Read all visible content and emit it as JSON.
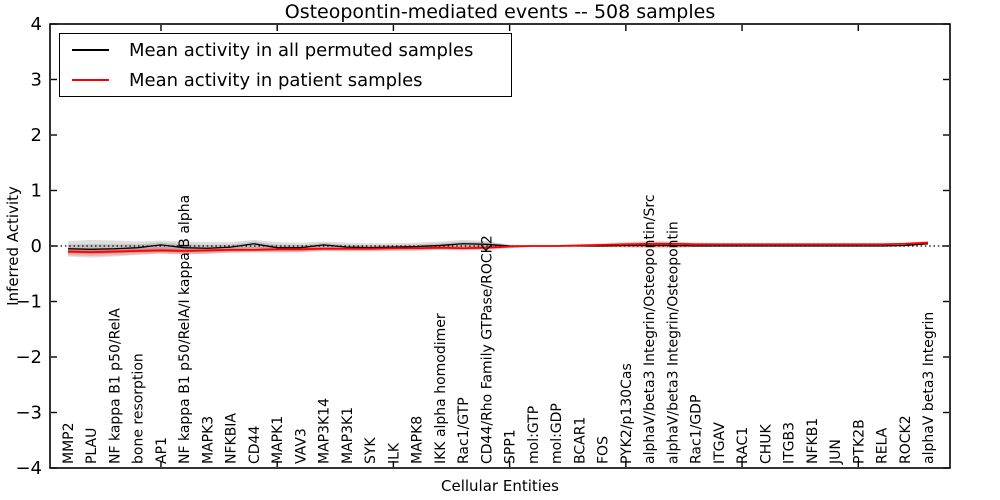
{
  "chart_data": {
    "type": "line",
    "title": "Osteopontin-mediated events -- 508 samples",
    "xlabel": "Cellular Entities",
    "ylabel": "Inferred Activity",
    "ylim": [
      -4,
      4
    ],
    "yticks": [
      4,
      3,
      2,
      1,
      0,
      -1,
      -2,
      -3,
      -4
    ],
    "grid": false,
    "legend_position": "upper left",
    "zero_line_style": "dotted",
    "axis_color": "#000000",
    "background_color": "#ffffff",
    "categories": [
      "MMP2",
      "PLAU",
      "NF kappa B1 p50/RelA",
      "bone resorption",
      "AP1",
      "NF kappa B1 p50/RelA/I kappa B alpha",
      "MAPK3",
      "NFKBIA",
      "CD44",
      "MAPK1",
      "VAV3",
      "MAP3K14",
      "MAP3K1",
      "SYK",
      "ILK",
      "MAPK8",
      "IKK alpha homodimer",
      "Rac1/GTP",
      "CD44/Rho Family GTPase/ROCK2",
      "SPP1",
      "mol:GTP",
      "mol:GDP",
      "BCAR1",
      "FOS",
      "PYK2/p130Cas",
      "alphaV/beta3 Integrin/Osteopontin/Src",
      "alphaV/beta3 Integrin/Osteopontin",
      "Rac1/GDP",
      "ITGAV",
      "RAC1",
      "CHUK",
      "ITGB3",
      "NFKB1",
      "JUN",
      "PTK2B",
      "RELA",
      "ROCK2",
      "alphaV beta3 Integrin"
    ],
    "series": [
      {
        "name": "Mean activity in all permuted samples",
        "color": "#000000",
        "line_width": 1.3,
        "band_color": "rgba(0,0,0,0.13)",
        "values": [
          -0.05,
          -0.06,
          -0.05,
          -0.03,
          0.02,
          -0.03,
          -0.04,
          -0.02,
          0.04,
          -0.03,
          -0.03,
          0.02,
          -0.02,
          -0.03,
          -0.02,
          -0.01,
          0.01,
          0.04,
          0.03,
          0.0,
          0.0,
          0.0,
          0.0,
          0.0,
          0.01,
          0.01,
          0.01,
          0.0,
          0.0,
          0.0,
          0.0,
          0.0,
          0.0,
          0.0,
          0.0,
          0.0,
          0.01,
          0.04
        ],
        "band_upper": [
          0.09,
          0.11,
          0.1,
          0.08,
          0.1,
          0.08,
          0.07,
          0.07,
          0.11,
          0.07,
          0.06,
          0.08,
          0.06,
          0.05,
          0.05,
          0.06,
          0.08,
          0.11,
          0.09,
          0.03,
          0.01,
          0.01,
          0.01,
          0.01,
          0.02,
          0.03,
          0.02,
          0.01,
          0.01,
          0.01,
          0.01,
          0.01,
          0.01,
          0.01,
          0.01,
          0.01,
          0.02,
          0.06
        ],
        "band_lower": [
          -0.19,
          -0.21,
          -0.19,
          -0.16,
          -0.13,
          -0.15,
          -0.14,
          -0.12,
          -0.1,
          -0.12,
          -0.11,
          -0.09,
          -0.1,
          -0.1,
          -0.09,
          -0.08,
          -0.07,
          -0.06,
          -0.06,
          -0.04,
          -0.01,
          -0.01,
          -0.01,
          -0.01,
          -0.02,
          -0.02,
          -0.02,
          -0.01,
          -0.01,
          -0.01,
          -0.01,
          -0.01,
          -0.01,
          -0.01,
          -0.01,
          -0.01,
          -0.01,
          0.02
        ]
      },
      {
        "name": "Mean activity in patient samples",
        "color": "#ff0000",
        "line_width": 1.8,
        "band_color": "rgba(255,0,0,0.18)",
        "values": [
          -0.1,
          -0.11,
          -0.1,
          -0.09,
          -0.08,
          -0.09,
          -0.08,
          -0.07,
          -0.07,
          -0.06,
          -0.06,
          -0.05,
          -0.05,
          -0.05,
          -0.04,
          -0.04,
          -0.03,
          -0.04,
          -0.03,
          -0.01,
          0.0,
          0.0,
          0.01,
          0.02,
          0.03,
          0.04,
          0.04,
          0.03,
          0.03,
          0.03,
          0.03,
          0.03,
          0.03,
          0.03,
          0.03,
          0.03,
          0.04,
          0.06
        ],
        "band_upper": [
          -0.03,
          -0.04,
          -0.03,
          -0.03,
          -0.02,
          -0.03,
          -0.02,
          -0.02,
          -0.02,
          -0.01,
          -0.01,
          -0.01,
          -0.01,
          -0.01,
          0.0,
          0.0,
          0.01,
          0.0,
          0.01,
          0.01,
          0.01,
          0.01,
          0.03,
          0.05,
          0.07,
          0.09,
          0.08,
          0.06,
          0.05,
          0.05,
          0.05,
          0.05,
          0.05,
          0.05,
          0.05,
          0.05,
          0.06,
          0.09
        ],
        "band_lower": [
          -0.17,
          -0.18,
          -0.17,
          -0.15,
          -0.14,
          -0.15,
          -0.14,
          -0.12,
          -0.12,
          -0.11,
          -0.11,
          -0.09,
          -0.09,
          -0.09,
          -0.08,
          -0.08,
          -0.07,
          -0.08,
          -0.07,
          -0.03,
          -0.01,
          -0.01,
          -0.01,
          -0.02,
          -0.03,
          -0.04,
          -0.04,
          -0.02,
          -0.01,
          0.01,
          0.01,
          0.01,
          0.01,
          0.01,
          0.01,
          0.01,
          0.02,
          0.03
        ]
      }
    ],
    "extra_tick_indices": [
      4,
      9,
      14,
      19,
      24,
      29,
      34
    ]
  }
}
